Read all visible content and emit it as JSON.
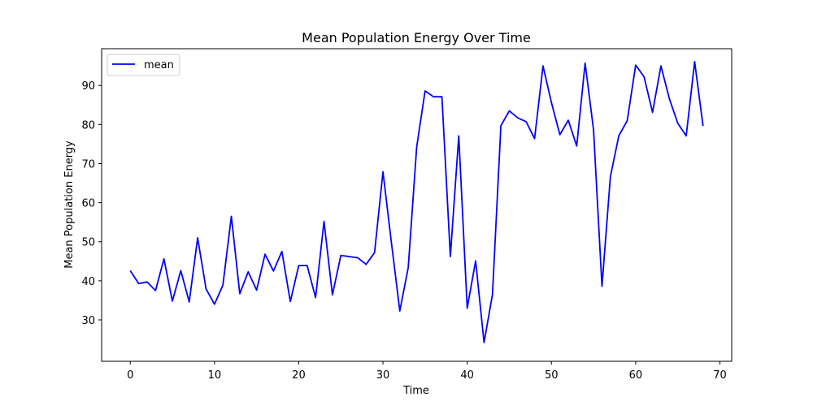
{
  "chart_data": {
    "type": "line",
    "title": "Mean Population Energy Over Time",
    "xlabel": "Time",
    "ylabel": "Mean Population Energy",
    "xlim": [
      -3.4,
      71.4
    ],
    "ylim": [
      19.4,
      99.4
    ],
    "xticks": [
      0,
      10,
      20,
      30,
      40,
      50,
      60,
      70
    ],
    "yticks": [
      30,
      40,
      50,
      60,
      70,
      80,
      90
    ],
    "grid": false,
    "legend": {
      "position": "top-left",
      "entries": [
        "mean"
      ]
    },
    "series": [
      {
        "name": "mean",
        "color": "#0000ff",
        "x": [
          0,
          1,
          2,
          3,
          4,
          5,
          6,
          7,
          8,
          9,
          10,
          11,
          12,
          13,
          14,
          15,
          16,
          17,
          18,
          19,
          20,
          21,
          22,
          23,
          24,
          25,
          26,
          27,
          28,
          29,
          30,
          31,
          32,
          33,
          34,
          35,
          36,
          37,
          38,
          39,
          40,
          41,
          42,
          43,
          44,
          45,
          46,
          47,
          48,
          49,
          50,
          51,
          52,
          53,
          54,
          55,
          56,
          57,
          58,
          59,
          60,
          61,
          62,
          63,
          64,
          65,
          66,
          67,
          68
        ],
        "y": [
          42.6,
          39.3,
          39.7,
          37.5,
          45.6,
          34.8,
          42.6,
          34.6,
          51.0,
          37.9,
          34.0,
          38.9,
          56.5,
          36.7,
          42.3,
          37.6,
          46.8,
          42.5,
          47.5,
          34.7,
          43.9,
          43.9,
          35.7,
          55.2,
          36.4,
          46.5,
          46.2,
          45.9,
          44.2,
          47.2,
          67.9,
          49.8,
          32.3,
          43.4,
          74.2,
          88.6,
          87.1,
          87.1,
          46.2,
          77.1,
          33.0,
          45.1,
          24.2,
          36.5,
          79.7,
          83.5,
          81.7,
          80.7,
          76.4,
          95.0,
          85.6,
          77.4,
          81.1,
          74.5,
          95.7,
          78.6,
          38.6,
          66.7,
          77.1,
          81.0,
          95.2,
          92.2,
          83.1,
          95.0,
          86.6,
          80.3,
          77.1,
          96.1,
          79.6
        ]
      }
    ]
  }
}
